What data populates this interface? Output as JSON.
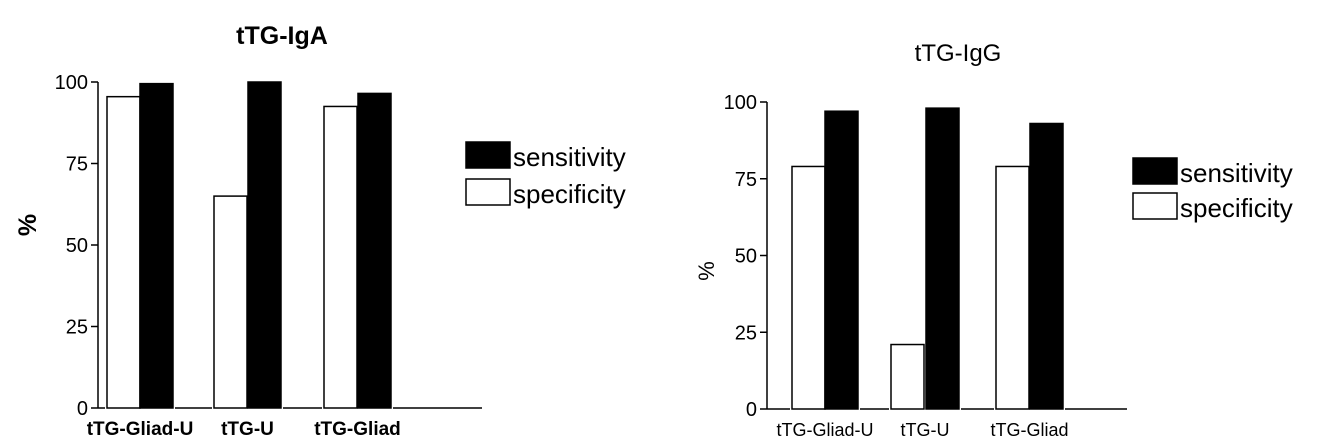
{
  "chart_data": [
    {
      "type": "bar",
      "title": "tTG-IgA",
      "ylabel": "%",
      "xlabel": "",
      "ylim": [
        0,
        100
      ],
      "yticks": [
        0,
        25,
        50,
        75,
        100
      ],
      "categories": [
        "tTG-Gliad-U",
        "tTG-U",
        "tTG-Gliad"
      ],
      "series": [
        {
          "name": "specificity",
          "fill": "#ffffff",
          "values": [
            95.5,
            65,
            92.5
          ]
        },
        {
          "name": "sensitivity",
          "fill": "#000000",
          "values": [
            99.5,
            100,
            96.5
          ]
        }
      ],
      "legend": [
        "sensitivity",
        "specificity"
      ],
      "legend_position": "right"
    },
    {
      "type": "bar",
      "title": "tTG-IgG",
      "ylabel": "%",
      "xlabel": "",
      "ylim": [
        0,
        100
      ],
      "yticks": [
        0,
        25,
        50,
        75,
        100
      ],
      "categories": [
        "tTG-Gliad-U",
        "tTG-U",
        "tTG-Gliad"
      ],
      "series": [
        {
          "name": "specificity",
          "fill": "#ffffff",
          "values": [
            79,
            21,
            79
          ]
        },
        {
          "name": "sensitivity",
          "fill": "#000000",
          "values": [
            97,
            98,
            93
          ]
        }
      ],
      "legend": [
        "sensitivity",
        "specificity"
      ],
      "legend_position": "right"
    }
  ]
}
